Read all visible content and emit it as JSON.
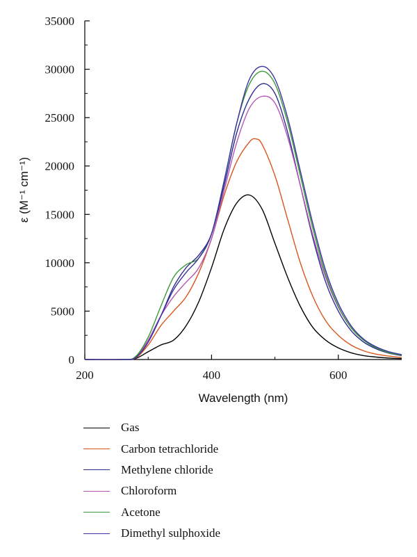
{
  "chart_data": {
    "type": "line",
    "title": "",
    "xlabel": "Wavelength (nm)",
    "ylabel": "ε (M⁻¹ cm⁻¹)",
    "xlim": [
      200,
      700
    ],
    "ylim": [
      0,
      35000
    ],
    "xticks": [
      "200",
      "400",
      "600"
    ],
    "yticks": [
      "0",
      "5000",
      "10000",
      "15000",
      "20000",
      "25000",
      "30000",
      "35000"
    ],
    "grid": false,
    "legend_position": "below",
    "series": [
      {
        "name": "Gas",
        "color": "#000000",
        "x": [
          200,
          260,
          280,
          300,
          320,
          340,
          360,
          380,
          400,
          420,
          440,
          460,
          480,
          500,
          520,
          540,
          560,
          580,
          600,
          620,
          640,
          660,
          680,
          700
        ],
        "y": [
          0,
          0,
          100,
          800,
          1500,
          2000,
          3500,
          6000,
          9500,
          13500,
          16200,
          17000,
          15500,
          12000,
          8500,
          5500,
          3300,
          2000,
          1200,
          700,
          400,
          250,
          150,
          100
        ]
      },
      {
        "name": "Carbon tetrachloride",
        "color": "#d9541a",
        "x": [
          200,
          260,
          280,
          300,
          320,
          340,
          360,
          380,
          400,
          420,
          440,
          460,
          470,
          480,
          500,
          520,
          540,
          560,
          580,
          600,
          620,
          640,
          660,
          680,
          700
        ],
        "y": [
          0,
          0,
          150,
          1500,
          3500,
          5000,
          6500,
          9000,
          12500,
          17000,
          20500,
          22500,
          22800,
          22200,
          19000,
          14500,
          10000,
          6500,
          4000,
          2500,
          1500,
          900,
          550,
          350,
          200
        ]
      },
      {
        "name": "Methylene chloride",
        "color": "#2c2c8c",
        "x": [
          200,
          260,
          280,
          300,
          320,
          340,
          360,
          380,
          400,
          420,
          440,
          460,
          480,
          500,
          520,
          540,
          560,
          580,
          600,
          620,
          640,
          660,
          680,
          700
        ],
        "y": [
          0,
          0,
          200,
          1800,
          4500,
          7500,
          9500,
          10800,
          13000,
          18000,
          23500,
          27000,
          28500,
          27500,
          23500,
          18000,
          12500,
          8000,
          5000,
          3000,
          1800,
          1100,
          650,
          400
        ]
      },
      {
        "name": "Chloroform",
        "color": "#b455b4",
        "x": [
          200,
          260,
          280,
          300,
          320,
          340,
          360,
          380,
          400,
          420,
          440,
          460,
          480,
          500,
          520,
          540,
          560,
          580,
          600,
          620,
          640,
          660,
          680,
          700
        ],
        "y": [
          0,
          0,
          200,
          2000,
          4500,
          6500,
          8000,
          9500,
          12500,
          17500,
          22500,
          26000,
          27200,
          26500,
          23000,
          18000,
          12800,
          8500,
          5400,
          3300,
          2000,
          1200,
          700,
          450
        ]
      },
      {
        "name": "Acetone",
        "color": "#3a9a3a",
        "x": [
          200,
          260,
          280,
          300,
          320,
          340,
          360,
          380,
          400,
          420,
          440,
          460,
          480,
          500,
          520,
          540,
          560,
          580,
          600,
          620,
          640,
          660,
          680,
          700
        ],
        "y": [
          0,
          0,
          300,
          2300,
          5500,
          8500,
          9800,
          10500,
          13000,
          18500,
          24500,
          28500,
          29800,
          28500,
          24500,
          19000,
          13500,
          8800,
          5500,
          3300,
          2000,
          1200,
          700,
          450
        ]
      },
      {
        "name": "Dimethyl sulphoxide",
        "color": "#3b32a0",
        "x": [
          200,
          260,
          280,
          300,
          320,
          340,
          360,
          380,
          400,
          420,
          440,
          460,
          480,
          500,
          520,
          540,
          560,
          580,
          600,
          620,
          640,
          660,
          680,
          700
        ],
        "y": [
          0,
          0,
          200,
          1800,
          4500,
          7200,
          9000,
          10500,
          13000,
          18500,
          24500,
          29000,
          30300,
          29000,
          25000,
          19500,
          14000,
          9200,
          5800,
          3500,
          2100,
          1300,
          800,
          500
        ]
      }
    ]
  }
}
